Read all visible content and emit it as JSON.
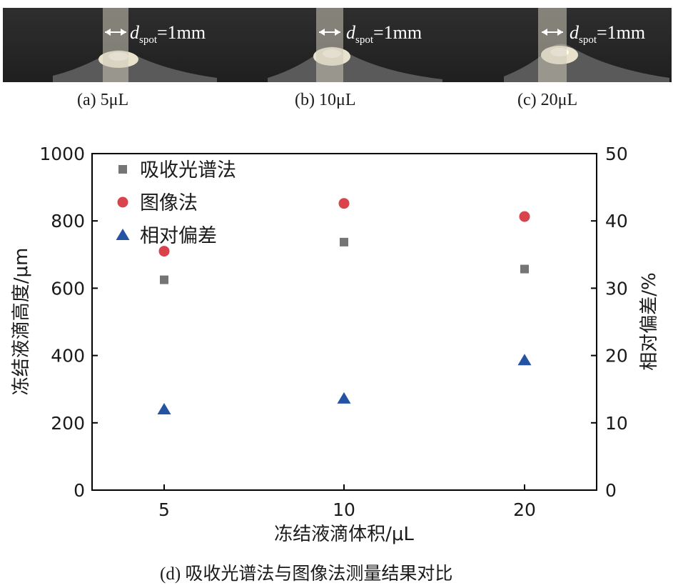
{
  "photos": [
    {
      "caption": "(a) 5μL",
      "label_var": "d",
      "label_sub": "spot",
      "label_rest": "=1mm"
    },
    {
      "caption": "(b) 10μL",
      "label_var": "d",
      "label_sub": "spot",
      "label_rest": "=1mm"
    },
    {
      "caption": "(c) 20μL",
      "label_var": "d",
      "label_sub": "spot",
      "label_rest": "=1mm"
    }
  ],
  "chart_caption": "(d) 吸收光谱法与图像法测量结果对比",
  "chart_data": {
    "type": "scatter",
    "categories": [
      "5",
      "10",
      "20"
    ],
    "xlabel": "冻结液滴体积/μL",
    "ylabel": "冻结液滴高度/μm",
    "y2label": "相对偏差/%",
    "ylim": [
      0,
      1000
    ],
    "y2lim": [
      0,
      50
    ],
    "yticks": [
      "0",
      "200",
      "400",
      "600",
      "800",
      "1000"
    ],
    "y2ticks": [
      "0",
      "10",
      "20",
      "30",
      "40",
      "50"
    ],
    "grid": false,
    "legend_position": "top-left",
    "series": [
      {
        "name": "吸收光谱法",
        "axis": "left",
        "marker": "square",
        "color": "#757575",
        "values": [
          625,
          737,
          657
        ]
      },
      {
        "name": "图像法",
        "axis": "left",
        "marker": "circle",
        "color": "#d9434b",
        "values": [
          710,
          852,
          813
        ]
      },
      {
        "name": "相对偏差",
        "axis": "right",
        "marker": "triangle",
        "color": "#2553a3",
        "values": [
          12,
          13.6,
          19.3
        ]
      }
    ]
  }
}
